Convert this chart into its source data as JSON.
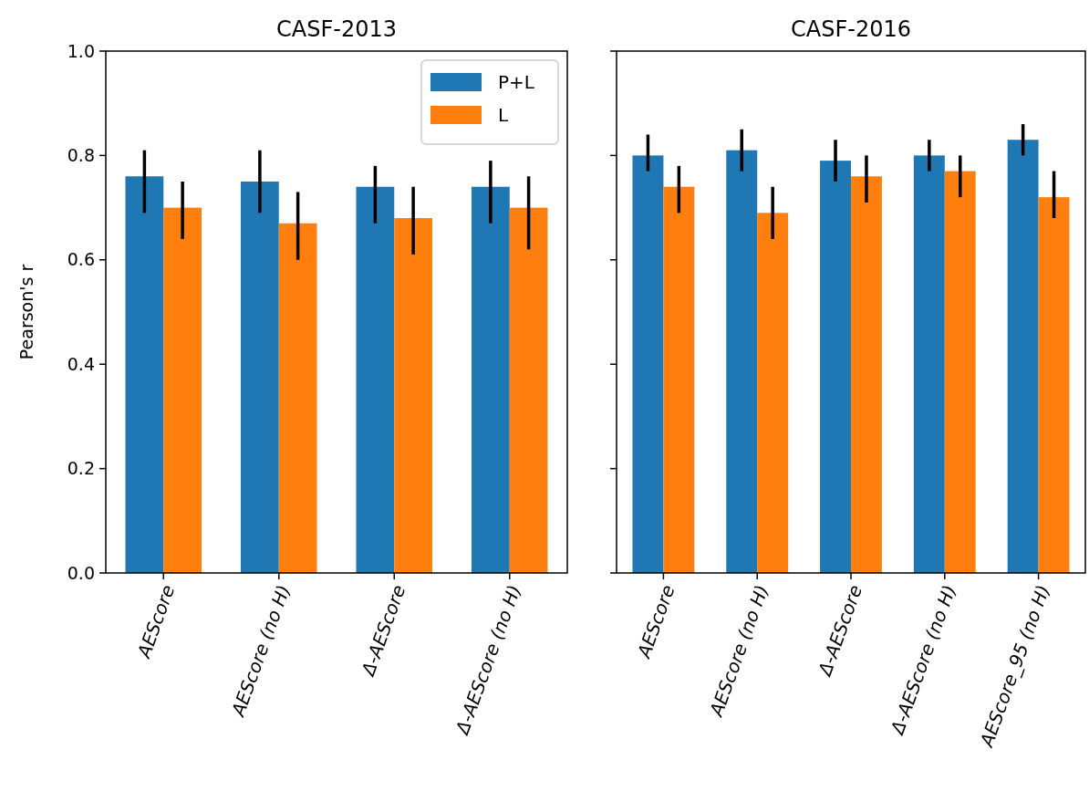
{
  "chart_data": [
    {
      "type": "bar",
      "title": "CASF-2013",
      "ylabel": "Pearson's r",
      "categories": [
        "AEScore",
        "AEScore (no H)",
        "Δ-AEScore",
        "Δ-AEScore (no H)"
      ],
      "ylim": [
        0,
        1
      ],
      "yticks": [
        {
          "value": 0,
          "label": "0.0"
        },
        {
          "value": 0.2,
          "label": "0.2"
        },
        {
          "value": 0.4,
          "label": "0.4"
        },
        {
          "value": 0.6,
          "label": "0.6"
        },
        {
          "value": 0.8,
          "label": "0.8"
        },
        {
          "value": 1,
          "label": "1.0"
        }
      ],
      "legend": "top right",
      "grid": false,
      "series": [
        {
          "name": "P+L",
          "color": "#1f77b4",
          "values": [
            0.76,
            0.75,
            0.74,
            0.74
          ],
          "errors": [
            [
              0.69,
              0.81
            ],
            [
              0.69,
              0.81
            ],
            [
              0.67,
              0.78
            ],
            [
              0.67,
              0.79
            ]
          ]
        },
        {
          "name": "L",
          "color": "#ff7f0e",
          "values": [
            0.7,
            0.67,
            0.68,
            0.7
          ],
          "errors": [
            [
              0.64,
              0.75
            ],
            [
              0.6,
              0.73
            ],
            [
              0.61,
              0.74
            ],
            [
              0.62,
              0.76
            ]
          ]
        }
      ]
    },
    {
      "type": "bar",
      "title": "CASF-2016",
      "categories": [
        "AEScore",
        "AEScore (no H)",
        "Δ-AEScore",
        "Δ-AEScore (no H)",
        "AEScore_95 (no H)"
      ],
      "ylim": [
        0,
        1
      ],
      "yticks": [
        {
          "value": 0,
          "label": null
        },
        {
          "value": 0.2,
          "label": null
        },
        {
          "value": 0.4,
          "label": null
        },
        {
          "value": 0.6,
          "label": null
        },
        {
          "value": 0.8,
          "label": null
        },
        {
          "value": 1,
          "label": null
        }
      ],
      "tick_labels": "x",
      "grid": false,
      "series": [
        {
          "color": "#1f77b4",
          "values": [
            0.8,
            0.81,
            0.79,
            0.8,
            0.83
          ],
          "errors": [
            [
              0.77,
              0.84
            ],
            [
              0.77,
              0.85
            ],
            [
              0.75,
              0.83
            ],
            [
              0.77,
              0.83
            ],
            [
              0.8,
              0.86
            ]
          ]
        },
        {
          "color": "#ff7f0e",
          "values": [
            0.74,
            0.69,
            0.76,
            0.77,
            0.72
          ],
          "errors": [
            [
              0.69,
              0.78
            ],
            [
              0.64,
              0.74
            ],
            [
              0.71,
              0.8
            ],
            [
              0.72,
              0.8
            ],
            [
              0.68,
              0.77
            ]
          ]
        }
      ]
    }
  ]
}
